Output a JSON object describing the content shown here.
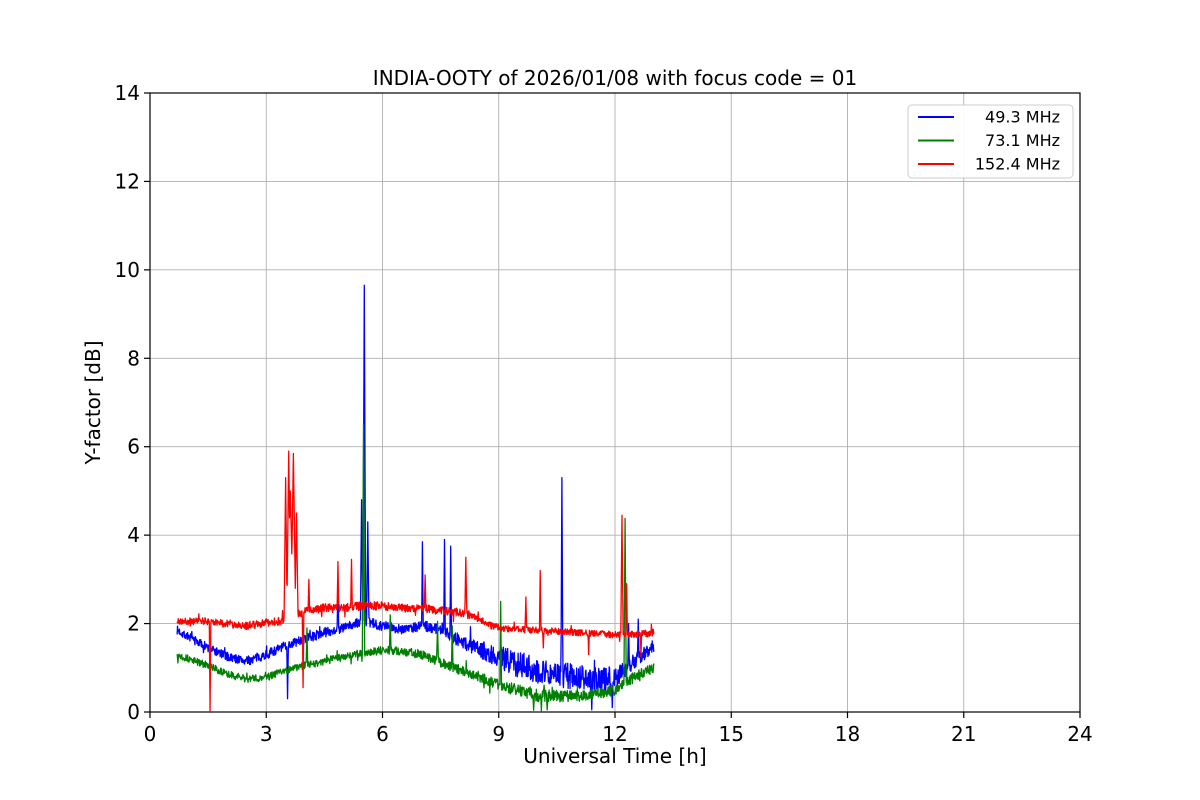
{
  "chart_data": {
    "type": "line",
    "title": "INDIA-OOTY of 2026/01/08 with focus code = 01",
    "xlabel": "Universal Time [h]",
    "ylabel": "Y-factor [dB]",
    "xlim": [
      0,
      24
    ],
    "ylim": [
      0,
      14
    ],
    "xticks": [
      0,
      3,
      6,
      9,
      12,
      15,
      18,
      21,
      24
    ],
    "yticks": [
      0,
      2,
      4,
      6,
      8,
      10,
      12,
      14
    ],
    "grid": true,
    "grid_color": "#b0b0b0",
    "spine_color": "#000000",
    "background": "#ffffff",
    "legend": {
      "position": "upper right",
      "entries": [
        "49.3 MHz",
        "73.1 MHz",
        "152.4 MHz"
      ]
    },
    "t_start": 0.7,
    "t_end": 13.0,
    "t_step": 0.01,
    "series": [
      {
        "name": "49.3 MHz",
        "color": "#0000ff",
        "seed": 7,
        "baseline": [
          [
            0.7,
            1.85
          ],
          [
            1.0,
            1.7
          ],
          [
            1.5,
            1.45
          ],
          [
            2.0,
            1.25
          ],
          [
            2.5,
            1.15
          ],
          [
            3.0,
            1.3
          ],
          [
            3.5,
            1.5
          ],
          [
            4.0,
            1.65
          ],
          [
            4.5,
            1.8
          ],
          [
            5.0,
            1.9
          ],
          [
            5.5,
            2.05
          ],
          [
            6.0,
            1.95
          ],
          [
            6.5,
            1.88
          ],
          [
            7.0,
            1.95
          ],
          [
            7.5,
            1.88
          ],
          [
            8.0,
            1.6
          ],
          [
            8.5,
            1.42
          ],
          [
            9.0,
            1.25
          ],
          [
            9.5,
            1.08
          ],
          [
            10.0,
            0.95
          ],
          [
            10.5,
            0.85
          ],
          [
            11.0,
            0.8
          ],
          [
            11.5,
            0.72
          ],
          [
            12.0,
            0.78
          ],
          [
            12.5,
            1.15
          ],
          [
            13.0,
            1.5
          ]
        ],
        "noise": [
          [
            0.7,
            0.1
          ],
          [
            5.0,
            0.11
          ],
          [
            7.5,
            0.12
          ],
          [
            8.5,
            0.2
          ],
          [
            9.5,
            0.3
          ],
          [
            11.8,
            0.28
          ],
          [
            12.3,
            0.18
          ],
          [
            13.0,
            0.15
          ]
        ],
        "spikes": [
          [
            3.55,
            0.3,
            0.02
          ],
          [
            4.85,
            3.0,
            0.02
          ],
          [
            5.46,
            4.8,
            0.03
          ],
          [
            5.53,
            9.65,
            0.035
          ],
          [
            5.62,
            4.3,
            0.03
          ],
          [
            7.03,
            3.85,
            0.02
          ],
          [
            7.6,
            3.9,
            0.02
          ],
          [
            7.76,
            3.75,
            0.02
          ],
          [
            10.63,
            5.3,
            0.025
          ],
          [
            11.4,
            0.05,
            0.02
          ],
          [
            11.93,
            0.1,
            0.02
          ],
          [
            12.35,
            2.0,
            0.02
          ],
          [
            12.6,
            2.1,
            0.02
          ]
        ]
      },
      {
        "name": "73.1 MHz",
        "color": "#008000",
        "seed": 13,
        "baseline": [
          [
            0.7,
            1.3
          ],
          [
            1.0,
            1.2
          ],
          [
            1.5,
            1.05
          ],
          [
            2.0,
            0.85
          ],
          [
            2.5,
            0.75
          ],
          [
            3.0,
            0.78
          ],
          [
            3.5,
            0.95
          ],
          [
            4.0,
            1.05
          ],
          [
            4.5,
            1.15
          ],
          [
            5.0,
            1.25
          ],
          [
            5.5,
            1.33
          ],
          [
            6.0,
            1.4
          ],
          [
            6.5,
            1.38
          ],
          [
            7.0,
            1.3
          ],
          [
            7.5,
            1.12
          ],
          [
            8.0,
            0.95
          ],
          [
            8.5,
            0.8
          ],
          [
            9.0,
            0.62
          ],
          [
            9.5,
            0.48
          ],
          [
            10.0,
            0.38
          ],
          [
            10.5,
            0.35
          ],
          [
            11.0,
            0.36
          ],
          [
            11.5,
            0.4
          ],
          [
            12.0,
            0.5
          ],
          [
            12.5,
            0.8
          ],
          [
            13.0,
            1.0
          ]
        ],
        "noise": [
          [
            0.7,
            0.08
          ],
          [
            6.0,
            0.09
          ],
          [
            9.0,
            0.12
          ],
          [
            9.8,
            0.15
          ],
          [
            11.0,
            0.13
          ],
          [
            13.0,
            0.11
          ]
        ],
        "spikes": [
          [
            4.05,
            1.9,
            0.02
          ],
          [
            5.51,
            6.5,
            0.03
          ],
          [
            6.2,
            2.2,
            0.02
          ],
          [
            7.42,
            2.05,
            0.02
          ],
          [
            7.8,
            1.95,
            0.02
          ],
          [
            9.05,
            2.5,
            0.02
          ],
          [
            9.9,
            0.04,
            0.02
          ],
          [
            10.1,
            0.03,
            0.015
          ],
          [
            10.25,
            0.05,
            0.02
          ],
          [
            12.26,
            4.38,
            0.03
          ]
        ]
      },
      {
        "name": "152.4 MHz",
        "color": "#ff0000",
        "seed": 21,
        "baseline": [
          [
            0.7,
            2.05
          ],
          [
            1.5,
            2.05
          ],
          [
            2.0,
            2.0
          ],
          [
            2.5,
            1.95
          ],
          [
            3.0,
            2.02
          ],
          [
            3.4,
            2.05
          ],
          [
            3.9,
            2.25
          ],
          [
            4.5,
            2.35
          ],
          [
            5.0,
            2.35
          ],
          [
            5.5,
            2.4
          ],
          [
            6.0,
            2.4
          ],
          [
            6.5,
            2.35
          ],
          [
            7.0,
            2.35
          ],
          [
            7.5,
            2.3
          ],
          [
            8.0,
            2.25
          ],
          [
            8.4,
            2.15
          ],
          [
            8.8,
            1.95
          ],
          [
            9.2,
            1.88
          ],
          [
            10.0,
            1.85
          ],
          [
            11.0,
            1.8
          ],
          [
            12.0,
            1.75
          ],
          [
            12.6,
            1.75
          ],
          [
            13.0,
            1.8
          ]
        ],
        "noise": [
          [
            0.7,
            0.08
          ],
          [
            4.0,
            0.1
          ],
          [
            8.0,
            0.09
          ],
          [
            9.0,
            0.07
          ],
          [
            13.0,
            0.08
          ]
        ],
        "spikes": [
          [
            1.55,
            0.03,
            0.02
          ],
          [
            3.5,
            5.3,
            0.04
          ],
          [
            3.58,
            5.9,
            0.05
          ],
          [
            3.62,
            5.0,
            0.08
          ],
          [
            3.7,
            5.85,
            0.06
          ],
          [
            3.78,
            4.5,
            0.04
          ],
          [
            3.95,
            0.55,
            0.02
          ],
          [
            4.1,
            3.0,
            0.02
          ],
          [
            4.85,
            3.4,
            0.02
          ],
          [
            5.2,
            3.45,
            0.02
          ],
          [
            7.1,
            3.1,
            0.02
          ],
          [
            8.15,
            3.5,
            0.025
          ],
          [
            9.7,
            2.6,
            0.02
          ],
          [
            10.07,
            3.2,
            0.02
          ],
          [
            10.15,
            1.45,
            0.015
          ],
          [
            11.32,
            1.3,
            0.015
          ],
          [
            12.18,
            4.45,
            0.03
          ],
          [
            12.3,
            2.9,
            0.02
          ],
          [
            12.67,
            1.25,
            0.015
          ]
        ]
      }
    ]
  }
}
